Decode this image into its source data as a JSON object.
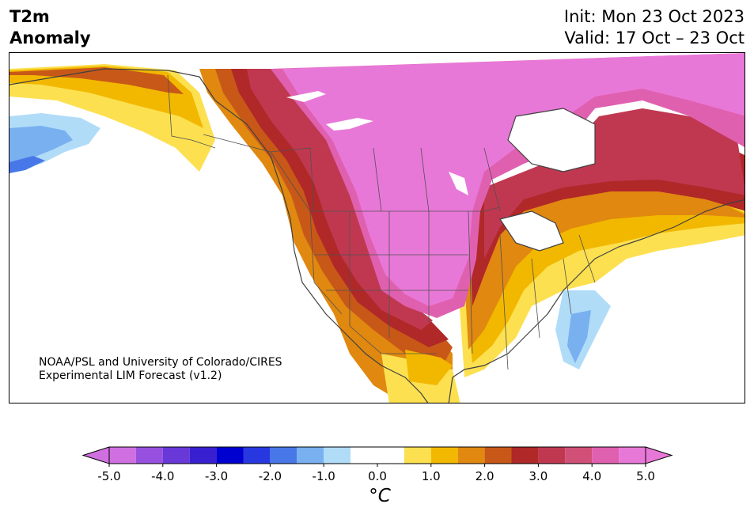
{
  "title": {
    "line1": "T2m",
    "line2": "Anomaly"
  },
  "header": {
    "init": "Init: Mon 23 Oct 2023",
    "valid": "Valid: 17 Oct – 23 Oct"
  },
  "credit": {
    "line1": "NOAA/PSL and University of Colorado/CIRES",
    "line2": "Experimental LIM Forecast (v1.2)"
  },
  "colorbar": {
    "unit": "°C",
    "ticks": [
      "-5.0",
      "-4.0",
      "-3.0",
      "-2.0",
      "-1.0",
      "0.0",
      "1.0",
      "2.0",
      "3.0",
      "4.0",
      "5.0"
    ],
    "tick_values": [
      -5,
      -4,
      -3,
      -2,
      -1,
      0,
      1,
      2,
      3,
      4,
      5
    ],
    "bins": [
      {
        "from": -5.0,
        "to": -4.5,
        "color": "#d070e0"
      },
      {
        "from": -4.5,
        "to": -4.0,
        "color": "#9850e0"
      },
      {
        "from": -4.0,
        "to": -3.5,
        "color": "#6838d8"
      },
      {
        "from": -3.5,
        "to": -3.0,
        "color": "#3820d0"
      },
      {
        "from": -3.0,
        "to": -2.5,
        "color": "#0000d0"
      },
      {
        "from": -2.5,
        "to": -2.0,
        "color": "#2838e0"
      },
      {
        "from": -2.0,
        "to": -1.5,
        "color": "#4878e8"
      },
      {
        "from": -1.5,
        "to": -1.0,
        "color": "#78b0f0"
      },
      {
        "from": -1.0,
        "to": -0.5,
        "color": "#b0dcf8"
      },
      {
        "from": -0.5,
        "to": 0.5,
        "color": "#ffffff"
      },
      {
        "from": 0.5,
        "to": 1.0,
        "color": "#fce050"
      },
      {
        "from": 1.0,
        "to": 1.5,
        "color": "#f2b800"
      },
      {
        "from": 1.5,
        "to": 2.0,
        "color": "#e08810"
      },
      {
        "from": 2.0,
        "to": 2.5,
        "color": "#c85818"
      },
      {
        "from": 2.5,
        "to": 3.0,
        "color": "#b02828"
      },
      {
        "from": 3.0,
        "to": 3.5,
        "color": "#c03850"
      },
      {
        "from": 3.5,
        "to": 4.0,
        "color": "#d05078"
      },
      {
        "from": 4.0,
        "to": 4.5,
        "color": "#e060b0"
      },
      {
        "from": 4.5,
        "to": 5.0,
        "color": "#e878d8"
      }
    ],
    "under_color": "#d070e0",
    "over_color": "#e878d8"
  },
  "map": {
    "region": "North America",
    "field_colors": {
      "strong_warm": "#e878d8",
      "warm4": "#e060b0",
      "warm35": "#d05078",
      "warm3": "#c03850",
      "warm25": "#b02828",
      "warm2": "#c85818",
      "warm15": "#e08810",
      "warm1": "#f2b800",
      "warm05": "#fce050",
      "cool1": "#b0dcf8",
      "cool15": "#78b0f0",
      "cool2": "#4878e8"
    }
  }
}
